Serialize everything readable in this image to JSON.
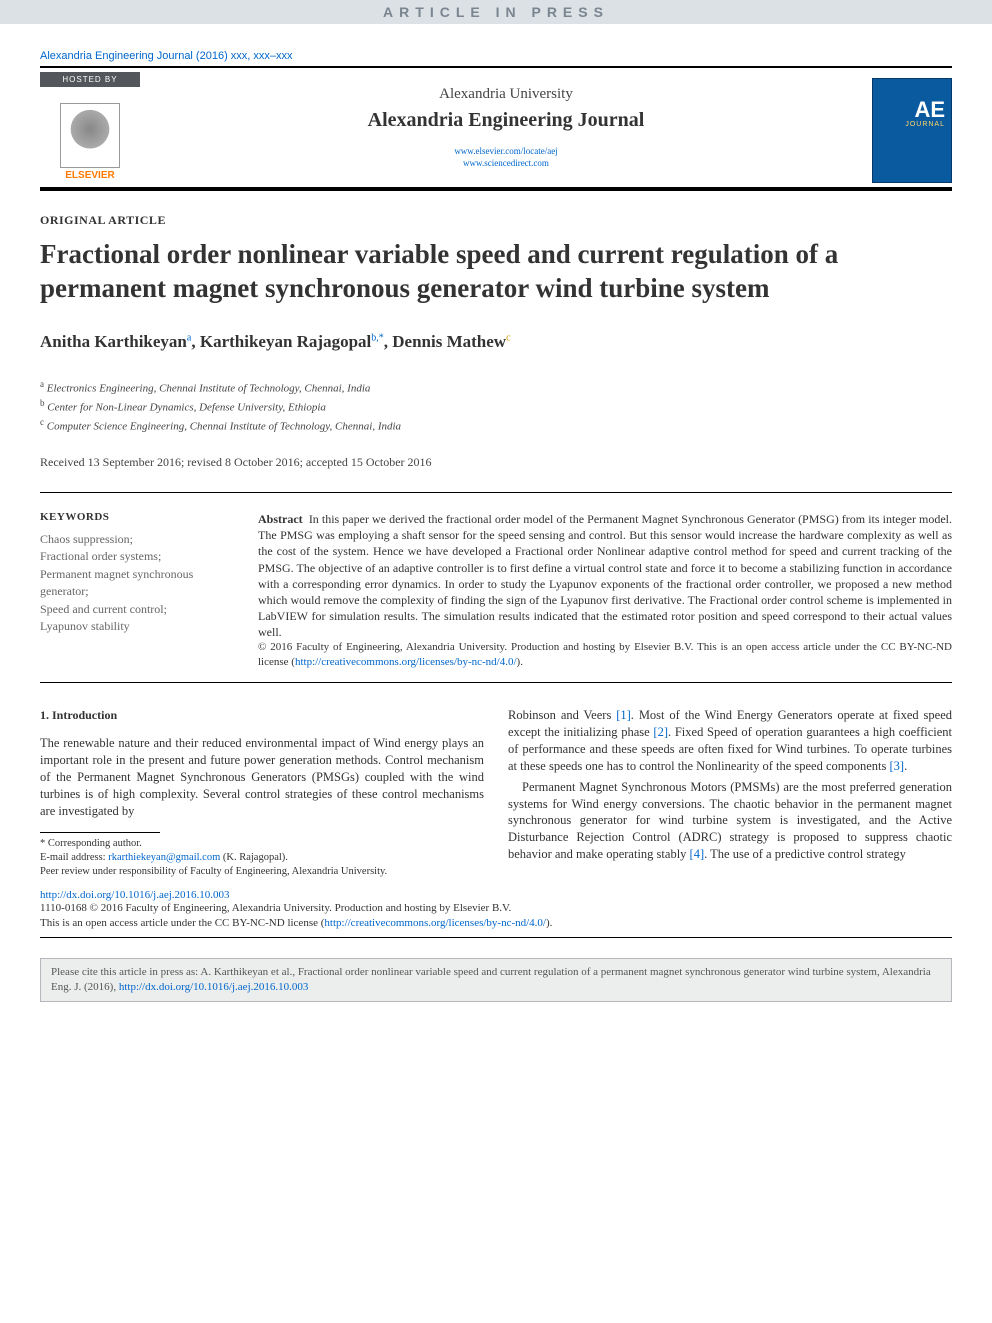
{
  "banner": "ARTICLE IN PRESS",
  "journal_ref": "Alexandria Engineering Journal (2016) xxx, xxx–xxx",
  "hosted_by": "HOSTED BY",
  "publisher": "ELSEVIER",
  "university": "Alexandria University",
  "journal_name": "Alexandria Engineering Journal",
  "link1": "www.elsevier.com/locate/aej",
  "link2": "www.sciencedirect.com",
  "cover_ae": "AE",
  "cover_j": "JOURNAL",
  "article_type": "ORIGINAL ARTICLE",
  "title": "Fractional order nonlinear variable speed and current regulation of a permanent magnet synchronous generator wind turbine system",
  "authors": {
    "a1_name": "Anitha Karthikeyan",
    "a1_sup": "a",
    "sep1": ", ",
    "a2_name": "Karthikeyan Rajagopal",
    "a2_sup": "b,",
    "a2_star": "*",
    "sep2": ", ",
    "a3_name": "Dennis Mathew",
    "a3_sup": "c"
  },
  "affiliations": {
    "a": "Electronics Engineering, Chennai Institute of Technology, Chennai, India",
    "b": "Center for Non-Linear Dynamics, Defense University, Ethiopia",
    "c": "Computer Science Engineering, Chennai Institute of Technology, Chennai, India"
  },
  "dates": "Received 13 September 2016; revised 8 October 2016; accepted 15 October 2016",
  "keywords_header": "KEYWORDS",
  "keywords": "Chaos suppression;\nFractional order systems;\nPermanent magnet synchronous generator;\nSpeed and current control;\nLyapunov stability",
  "abstract_label": "Abstract",
  "abstract_text": "In this paper we derived the fractional order model of the Permanent Magnet Synchronous Generator (PMSG) from its integer model. The PMSG was employing a shaft sensor for the speed sensing and control. But this sensor would increase the hardware complexity as well as the cost of the system. Hence we have developed a Fractional order Nonlinear adaptive control method for speed and current tracking of the PMSG. The objective of an adaptive controller is to first define a virtual control state and force it to become a stabilizing function in accordance with a corresponding error dynamics. In order to study the Lyapunov exponents of the fractional order controller, we proposed a new method which would remove the complexity of finding the sign of the Lyapunov first derivative. The Fractional order control scheme is implemented in LabVIEW for simulation results. The simulation results indicated that the estimated rotor position and speed correspond to their actual values well.",
  "license_prefix": "© 2016 Faculty of Engineering, Alexandria University. Production and hosting by Elsevier B.V. This is an open access article under the CC BY-NC-ND license (",
  "license_url": "http://creativecommons.org/licenses/by-nc-nd/4.0/",
  "license_suffix": ").",
  "section1": "1. Introduction",
  "col1_p1": "The renewable nature and their reduced environmental impact of Wind energy plays an important role in the present and future power generation methods. Control mechanism of the Permanent Magnet Synchronous Generators (PMSGs) coupled with the wind turbines is of high complexity. Several control strategies of these control mechanisms are investigated by",
  "col2_p1a": "Robinson and Veers ",
  "ref1": "[1]",
  "col2_p1b": ". Most of the Wind Energy Generators operate at fixed speed except the initializing phase ",
  "ref2": "[2]",
  "col2_p1c": ". Fixed Speed of operation guarantees a high coefficient of performance and these speeds are often fixed for Wind turbines. To operate turbines at these speeds one has to control the Nonlinearity of the speed components ",
  "ref3": "[3]",
  "col2_p1d": ".",
  "col2_p2a": "Permanent Magnet Synchronous Motors (PMSMs) are the most preferred generation systems for Wind energy conversions. The chaotic behavior in the permanent magnet synchronous generator for wind turbine system is investigated, and the Active Disturbance Rejection Control (ADRC) strategy is proposed to suppress chaotic behavior and make operating stably ",
  "ref4": "[4]",
  "col2_p2b": ". The use of a predictive control strategy",
  "footnote_corr": "* Corresponding author.",
  "footnote_email_label": "E-mail address: ",
  "footnote_email": "rkarthiekeyan@gmail.com",
  "footnote_email_suffix": " (K. Rajagopal).",
  "footnote_peer": "Peer review under responsibility of Faculty of Engineering, Alexandria University.",
  "doi": "http://dx.doi.org/10.1016/j.aej.2016.10.003",
  "copyright1": "1110-0168 © 2016 Faculty of Engineering, Alexandria University. Production and hosting by Elsevier B.V.",
  "copyright2a": "This is an open access article under the CC BY-NC-ND license (",
  "copyright2b": ").",
  "cite_prefix": "Please cite this article in press as: A. Karthikeyan et al., Fractional order nonlinear variable speed and current regulation of a permanent magnet synchronous generator wind turbine system, Alexandria Eng. J. (2016), ",
  "cite_doi": "http://dx.doi.org/10.1016/j.aej.2016.10.003"
}
